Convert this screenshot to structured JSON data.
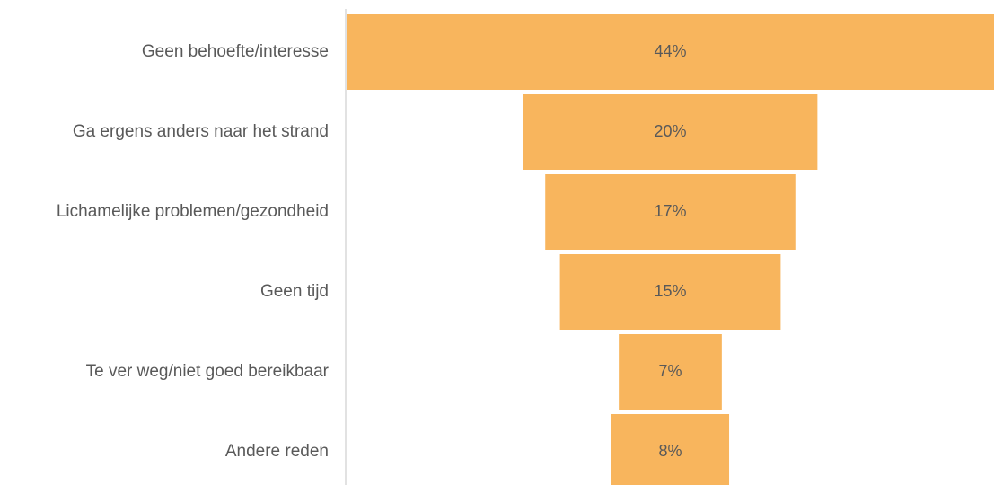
{
  "chart_data": {
    "type": "funnel",
    "categories": [
      "Geen behoefte/interesse",
      "Ga ergens anders naar het strand",
      "Lichamelijke problemen/gezondheid",
      "Geen tijd",
      "Te ver weg/niet goed bereikbaar",
      "Andere reden"
    ],
    "values": [
      44,
      20,
      17,
      15,
      7,
      8
    ],
    "value_labels": [
      "44%",
      "20%",
      "17%",
      "15%",
      "7%",
      "8%"
    ],
    "color": "#f8b55d"
  }
}
